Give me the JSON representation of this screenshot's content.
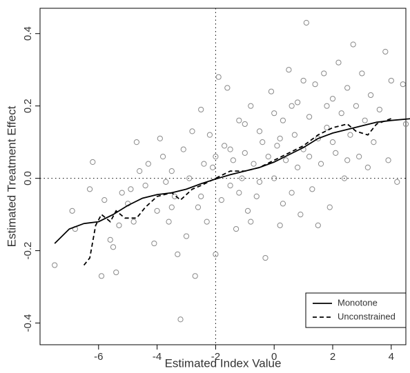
{
  "chart_data": {
    "type": "scatter",
    "xlabel": "Estimated Index Value",
    "ylabel": "Estimated Treatment Effect",
    "xlim": [
      -8,
      4.5
    ],
    "ylim": [
      -0.46,
      0.47
    ],
    "xticks": [
      -6,
      -4,
      -2,
      0,
      2,
      4
    ],
    "yticks": [
      -0.4,
      -0.2,
      {
        "value": 0,
        "label": "0.0"
      },
      0.2,
      0.4
    ],
    "vline": -2,
    "hline": 0,
    "legend": "bottom-right",
    "points": {
      "color": "#888888",
      "x": [
        -7.5,
        -6.9,
        -6.8,
        -6.3,
        -6.2,
        -5.9,
        -5.8,
        -5.6,
        -5.5,
        -5.4,
        -5.3,
        -5.2,
        -5.0,
        -4.9,
        -4.8,
        -4.7,
        -4.6,
        -4.4,
        -4.3,
        -4.1,
        -4.0,
        -3.9,
        -3.8,
        -3.7,
        -3.6,
        -3.5,
        -3.4,
        -3.3,
        -3.2,
        -3.1,
        -3.0,
        -2.9,
        -2.8,
        -2.7,
        -2.6,
        -2.5,
        -2.4,
        -2.3,
        -2.2,
        -2.1,
        -2.0,
        -1.9,
        -1.8,
        -1.7,
        -1.6,
        -1.5,
        -1.4,
        -1.3,
        -1.2,
        -1.1,
        -1.0,
        -0.9,
        -0.8,
        -0.7,
        -0.6,
        -0.5,
        -0.4,
        -0.3,
        -0.2,
        -0.1,
        0.0,
        0.1,
        0.2,
        0.3,
        0.4,
        0.5,
        0.6,
        0.7,
        0.8,
        0.9,
        1.0,
        1.1,
        1.2,
        1.3,
        1.4,
        1.5,
        1.6,
        1.7,
        1.8,
        1.9,
        2.0,
        2.1,
        2.2,
        2.3,
        2.4,
        2.5,
        2.6,
        2.7,
        2.8,
        2.9,
        3.0,
        3.1,
        3.3,
        3.4,
        3.6,
        3.8,
        3.9,
        4.0,
        4.2,
        4.4,
        4.5,
        -1.0,
        0.3,
        1.2,
        -0.5,
        0.8,
        2.0,
        -1.5,
        0.0,
        1.5,
        -2.5,
        2.5,
        -3.5,
        0.6,
        3.2,
        -0.8,
        1.0,
        -2.0,
        0.2,
        1.8,
        -1.2
      ],
      "y": [
        -0.24,
        -0.09,
        -0.14,
        -0.03,
        0.045,
        -0.27,
        -0.06,
        -0.17,
        -0.19,
        -0.26,
        -0.13,
        -0.04,
        -0.07,
        -0.03,
        -0.12,
        0.1,
        0.02,
        -0.02,
        0.04,
        -0.18,
        -0.09,
        0.11,
        0.06,
        -0.01,
        -0.12,
        0.02,
        -0.05,
        -0.21,
        -0.39,
        0.08,
        -0.16,
        0.0,
        0.13,
        -0.27,
        -0.08,
        0.19,
        0.04,
        -0.12,
        0.12,
        0.03,
        -0.21,
        0.28,
        -0.06,
        0.09,
        0.25,
        -0.02,
        0.05,
        -0.14,
        0.16,
        0.0,
        0.07,
        -0.09,
        0.2,
        0.04,
        -0.05,
        0.13,
        0.1,
        -0.22,
        0.06,
        0.24,
        0.0,
        0.09,
        -0.13,
        0.16,
        0.05,
        0.3,
        -0.04,
        0.12,
        0.21,
        -0.1,
        0.08,
        0.43,
        0.17,
        -0.03,
        0.26,
        0.11,
        0.04,
        0.29,
        0.14,
        -0.08,
        0.22,
        0.07,
        0.32,
        0.18,
        0.0,
        0.25,
        0.12,
        0.37,
        0.2,
        0.06,
        0.29,
        0.16,
        0.23,
        0.1,
        0.19,
        0.35,
        0.05,
        0.27,
        -0.01,
        0.26,
        0.15,
        0.15,
        -0.07,
        0.06,
        -0.01,
        0.03,
        0.1,
        0.08,
        0.18,
        -0.13,
        -0.05,
        0.05,
        -0.08,
        0.2,
        0.03,
        -0.12,
        0.27,
        0.06,
        0.11,
        0.2,
        -0.04
      ]
    },
    "lines": [
      {
        "name": "Monotone",
        "style": "solid",
        "color": "#000000",
        "x": [
          -7.5,
          -7,
          -6.5,
          -6,
          -5.5,
          -5,
          -4.5,
          -4,
          -3.5,
          -3,
          -2.5,
          -2,
          -1.5,
          -1,
          -0.5,
          0,
          0.5,
          1,
          1.5,
          2,
          2.5,
          3,
          3.5,
          4,
          4.7
        ],
        "y": [
          -0.18,
          -0.14,
          -0.125,
          -0.12,
          -0.1,
          -0.075,
          -0.055,
          -0.045,
          -0.04,
          -0.03,
          -0.015,
          -0.002,
          0.01,
          0.02,
          0.03,
          0.045,
          0.065,
          0.085,
          0.11,
          0.125,
          0.135,
          0.145,
          0.155,
          0.16,
          0.165
        ]
      },
      {
        "name": "Unconstrained",
        "style": "dashed",
        "color": "#000000",
        "x": [
          -6.5,
          -6.3,
          -6.1,
          -5.9,
          -5.6,
          -5.4,
          -5.1,
          -4.7,
          -4.4,
          -4,
          -3.5,
          -3.2,
          -2.8,
          -2.5,
          -2,
          -1.5,
          -1,
          -0.5,
          0,
          0.5,
          1,
          1.5,
          2,
          2.5,
          2.8,
          3.2,
          3.5,
          4
        ],
        "y": [
          -0.24,
          -0.22,
          -0.13,
          -0.1,
          -0.12,
          -0.09,
          -0.11,
          -0.11,
          -0.08,
          -0.05,
          -0.04,
          -0.06,
          -0.03,
          -0.02,
          0.0,
          0.02,
          0.02,
          0.03,
          0.05,
          0.07,
          0.09,
          0.12,
          0.14,
          0.15,
          0.13,
          0.12,
          0.15,
          0.165
        ]
      }
    ]
  }
}
